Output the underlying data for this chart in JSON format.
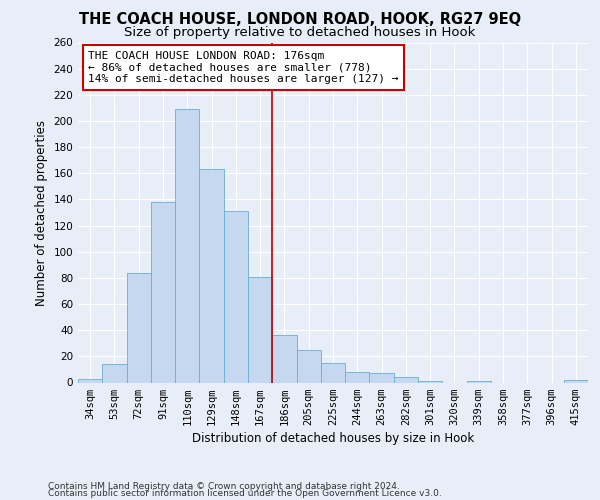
{
  "title": "THE COACH HOUSE, LONDON ROAD, HOOK, RG27 9EQ",
  "subtitle": "Size of property relative to detached houses in Hook",
  "xlabel": "Distribution of detached houses by size in Hook",
  "ylabel": "Number of detached properties",
  "categories": [
    "34sqm",
    "53sqm",
    "72sqm",
    "91sqm",
    "110sqm",
    "129sqm",
    "148sqm",
    "167sqm",
    "186sqm",
    "205sqm",
    "225sqm",
    "244sqm",
    "263sqm",
    "282sqm",
    "301sqm",
    "320sqm",
    "339sqm",
    "358sqm",
    "377sqm",
    "396sqm",
    "415sqm"
  ],
  "values": [
    3,
    14,
    84,
    138,
    209,
    163,
    131,
    81,
    36,
    25,
    15,
    8,
    7,
    4,
    1,
    0,
    1,
    0,
    0,
    0,
    2
  ],
  "bar_color": "#c5d8ef",
  "bar_edge_color": "#6aaed6",
  "vline_color": "#bb0000",
  "annotation_text": "THE COACH HOUSE LONDON ROAD: 176sqm\n← 86% of detached houses are smaller (778)\n14% of semi-detached houses are larger (127) →",
  "annotation_box_color": "#ffffff",
  "annotation_box_edge": "#cc0000",
  "ylim": [
    0,
    260
  ],
  "yticks": [
    0,
    20,
    40,
    60,
    80,
    100,
    120,
    140,
    160,
    180,
    200,
    220,
    240,
    260
  ],
  "footer1": "Contains HM Land Registry data © Crown copyright and database right 2024.",
  "footer2": "Contains public sector information licensed under the Open Government Licence v3.0.",
  "bg_color": "#e8eef8",
  "grid_color": "#ffffff",
  "title_fontsize": 10.5,
  "subtitle_fontsize": 9.5,
  "axis_label_fontsize": 8.5,
  "tick_fontsize": 7.5,
  "annotation_fontsize": 8,
  "footer_fontsize": 6.5
}
